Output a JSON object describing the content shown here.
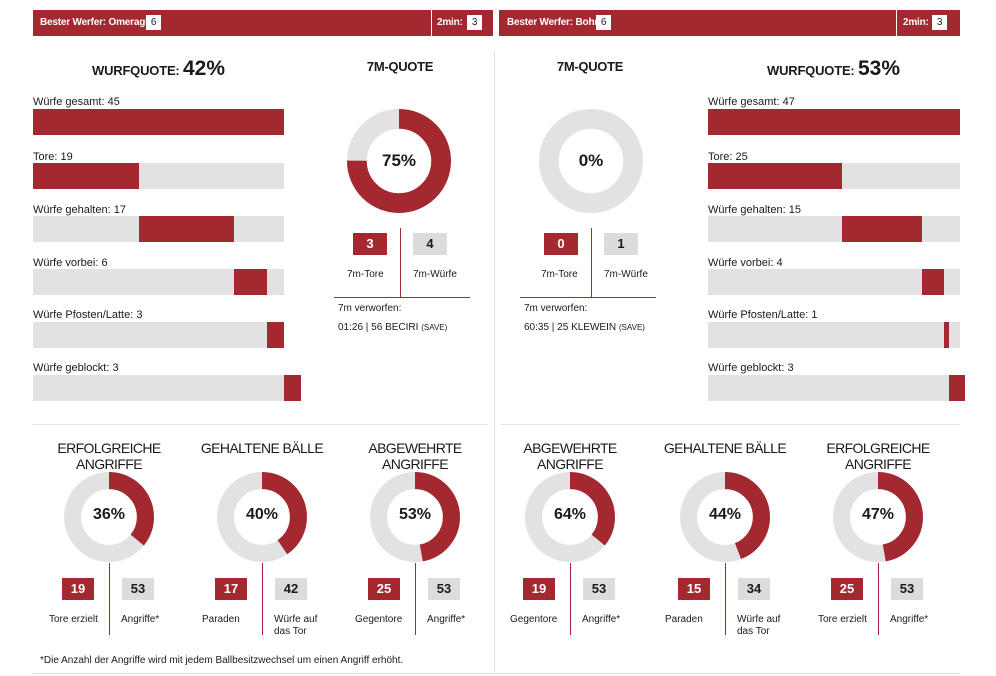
{
  "colors": {
    "accent": "#a4282f",
    "track": "#e2e2e2",
    "grey_box": "#dcdcdc"
  },
  "header": {
    "left": {
      "best_label": "Bester Werfer: Omeragic",
      "best_value": "6",
      "twomin_label": "2min:",
      "twomin_value": "3"
    },
    "right": {
      "best_label": "Bester Werfer: Bohm",
      "best_value": "6",
      "twomin_label": "2min:",
      "twomin_value": "3"
    }
  },
  "left": {
    "wurfquote_label": "WURFQUOTE:",
    "wurfquote_value": "42%",
    "bars": [
      {
        "label": "Würfe gesamt: 45"
      },
      {
        "label": "Tore: 19"
      },
      {
        "label": "Würfe gehalten: 17"
      },
      {
        "label": "Würfe vorbei: 6"
      },
      {
        "label": "Würfe Pfosten/Latte: 3"
      },
      {
        "label": "Würfe geblockt: 3"
      }
    ],
    "seven_m": {
      "title": "7M-QUOTE",
      "percent_label": "75%",
      "tore": "3",
      "tore_label": "7m-Tore",
      "wuerfe": "4",
      "wuerfe_label": "7m-Würfe",
      "verworfen_label": "7m verworfen:",
      "verworfen_entry": "01:26 | 56 BECIRI",
      "verworfen_note": "(SAVE)"
    }
  },
  "right": {
    "wurfquote_label": "WURFQUOTE:",
    "wurfquote_value": "53%",
    "bars": [
      {
        "label": "Würfe gesamt: 47"
      },
      {
        "label": "Tore: 25"
      },
      {
        "label": "Würfe gehalten: 15"
      },
      {
        "label": "Würfe vorbei: 4"
      },
      {
        "label": "Würfe Pfosten/Latte: 1"
      },
      {
        "label": "Würfe geblockt: 3"
      }
    ],
    "seven_m": {
      "title": "7M-QUOTE",
      "percent_label": "0%",
      "tore": "0",
      "tore_label": "7m-Tore",
      "wuerfe": "1",
      "wuerfe_label": "7m-Würfe",
      "verworfen_label": "7m verworfen:",
      "verworfen_entry": "60:35 | 25 KLEWEIN",
      "verworfen_note": "(SAVE)"
    }
  },
  "angriffe": [
    {
      "title": "ERFOLGREICHE ANGRIFFE",
      "percent_label": "36%",
      "red_value": "19",
      "red_label": "Tore erzielt",
      "grey_value": "53",
      "grey_label": "Angriffe*"
    },
    {
      "title": "GEHALTENE BÄLLE",
      "percent_label": "40%",
      "red_value": "17",
      "red_label": "Paraden",
      "grey_value": "42",
      "grey_label": "Würfe auf das Tor"
    },
    {
      "title": "ABGEWEHRTE ANGRIFFE",
      "percent_label": "53%",
      "red_value": "25",
      "red_label": "Gegentore",
      "grey_value": "53",
      "grey_label": "Angriffe*"
    },
    {
      "title": "ABGEWEHRTE ANGRIFFE",
      "percent_label": "64%",
      "red_value": "19",
      "red_label": "Gegentore",
      "grey_value": "53",
      "grey_label": "Angriffe*"
    },
    {
      "title": "GEHALTENE BÄLLE",
      "percent_label": "44%",
      "red_value": "15",
      "red_label": "Paraden",
      "grey_value": "34",
      "grey_label": "Würfe auf das Tor"
    },
    {
      "title": "ERFOLGREICHE ANGRIFFE",
      "percent_label": "47%",
      "red_value": "25",
      "red_label": "Tore erzielt",
      "grey_value": "53",
      "grey_label": "Angriffe*"
    }
  ],
  "footnote": "*Die Anzahl der Angriffe wird mit jedem Ballbesitzwechsel um einen Angriff erhöht.",
  "chart_data": [
    {
      "type": "bar",
      "title": "Wurfquote Heim: 42%",
      "categories": [
        "Würfe gesamt",
        "Tore",
        "Würfe gehalten",
        "Würfe vorbei",
        "Würfe Pfosten/Latte",
        "Würfe geblockt"
      ],
      "values": [
        45,
        19,
        17,
        6,
        3,
        3
      ],
      "total": 45,
      "stacked_offsets": [
        0,
        0,
        19,
        36,
        42,
        45
      ]
    },
    {
      "type": "bar",
      "title": "Wurfquote Gast: 53%",
      "categories": [
        "Würfe gesamt",
        "Tore",
        "Würfe gehalten",
        "Würfe vorbei",
        "Würfe Pfosten/Latte",
        "Würfe geblockt"
      ],
      "values": [
        47,
        25,
        15,
        4,
        1,
        3
      ],
      "total": 47,
      "stacked_offsets": [
        0,
        0,
        25,
        40,
        44,
        45
      ]
    },
    {
      "type": "pie",
      "title": "7M-Quote Heim",
      "value": 3,
      "total": 4
    },
    {
      "type": "pie",
      "title": "7M-Quote Gast",
      "value": 0,
      "total": 1
    },
    {
      "type": "pie",
      "title": "Erfolgreiche Angriffe Heim",
      "value": 19,
      "total": 53
    },
    {
      "type": "pie",
      "title": "Gehaltene Bälle Heim",
      "value": 17,
      "total": 42
    },
    {
      "type": "pie",
      "title": "Abgewehrte Angriffe Heim",
      "value": 25,
      "total": 53
    },
    {
      "type": "pie",
      "title": "Abgewehrte Angriffe Gast",
      "value": 19,
      "total": 53
    },
    {
      "type": "pie",
      "title": "Gehaltene Bälle Gast",
      "value": 15,
      "total": 34
    },
    {
      "type": "pie",
      "title": "Erfolgreiche Angriffe Gast",
      "value": 25,
      "total": 53
    }
  ]
}
